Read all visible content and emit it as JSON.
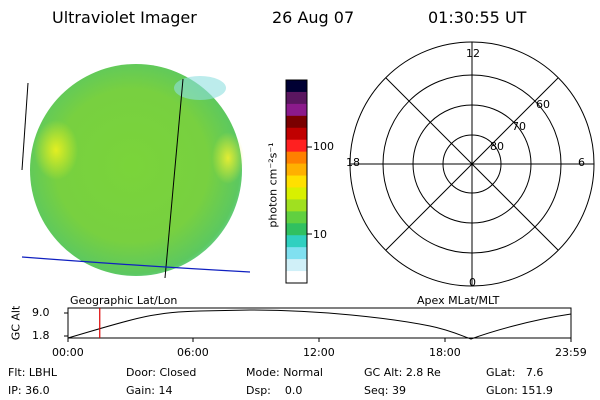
{
  "header": {
    "instrument": "Ultraviolet Imager",
    "date": "26 Aug 07",
    "time": "01:30:55 UT"
  },
  "colorbar": {
    "unit_label": "photon cm⁻²s⁻¹",
    "ticks": [
      "100",
      "10"
    ],
    "colors": [
      "#000033",
      "#5a1660",
      "#8b1a8b",
      "#7a0000",
      "#c00000",
      "#ff2020",
      "#ff8000",
      "#ffb000",
      "#ffe000",
      "#d8f000",
      "#a0e020",
      "#60d040",
      "#30c060",
      "#30d0c0",
      "#80e0f0",
      "#d0f0f8",
      "#ffffff"
    ]
  },
  "polar_plot": {
    "labels": {
      "top": "12",
      "right": "6",
      "bottom": "0",
      "left": "18"
    },
    "rings": [
      "60",
      "70",
      "80"
    ]
  },
  "image_labels": {
    "left": "Geographic Lat/Lon",
    "right": "Apex MLat/MLT"
  },
  "altitude_plot": {
    "axis_label": "GC Alt",
    "y_ticks": [
      "9.0",
      "1.8"
    ],
    "x_ticks": [
      "00:00",
      "06:00",
      "12:00",
      "18:00",
      "23:59"
    ],
    "current_marker_hour": 1.515
  },
  "info": {
    "row1": [
      {
        "label": "Flt:",
        "value": "LBHL"
      },
      {
        "label": "Door:",
        "value": "Closed"
      },
      {
        "label": "Mode:",
        "value": "Normal"
      },
      {
        "label": "GC Alt:",
        "value": "2.8 Re"
      },
      {
        "label": "GLat:",
        "value": "7.6"
      }
    ],
    "row2": [
      {
        "label": "IP:",
        "value": "36.0"
      },
      {
        "label": "Gain:",
        "value": "14"
      },
      {
        "label": "Dsp:",
        "value": "0.0"
      },
      {
        "label": "Seq:",
        "value": "39"
      },
      {
        "label": "GLon:",
        "value": "151.9"
      }
    ]
  }
}
